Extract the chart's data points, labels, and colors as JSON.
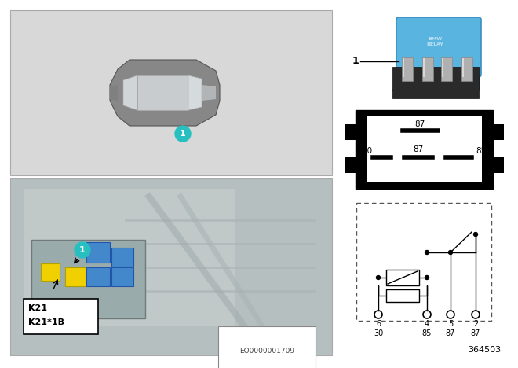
{
  "bg_color": "#ffffff",
  "part_number": "364503",
  "eo_number": "EO0000001709",
  "relay_color": "#5ab4e0",
  "relay_dark": "#333333",
  "relay_pin_color": "#999999",
  "left_top_bg": "#d8d8d8",
  "left_bot_bg": "#b5bfc0",
  "car_body_color": "#909090",
  "car_window_color": "#d0d5d8",
  "car_roof_color": "#c5cacc",
  "badge_color": "#28bfc0",
  "yellow_relay": "#f0d000",
  "blue_relay": "#4488cc",
  "k21_label1": "K21",
  "k21_label2": "K21*1B",
  "item_label": "1",
  "pin_top": "87",
  "pin_mid_left": "30",
  "pin_mid_center": "87",
  "pin_mid_right": "85",
  "schematic_pins": [
    "6",
    "4",
    "5",
    "2"
  ],
  "schematic_labels": [
    "30",
    "85",
    "87",
    "87"
  ]
}
